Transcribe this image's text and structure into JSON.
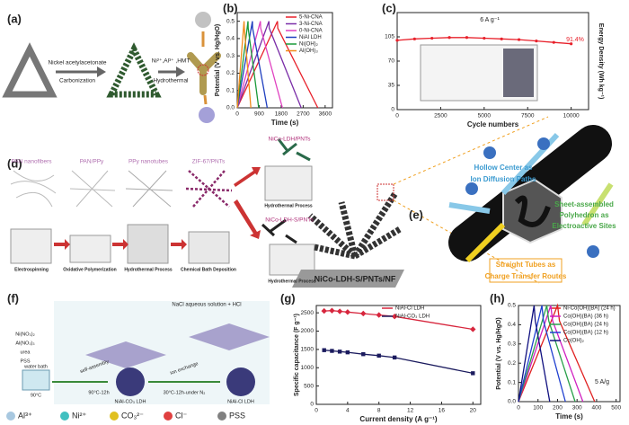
{
  "panels": {
    "a": {
      "label": "(a)",
      "steps": [
        "Nickel acetylacetonate",
        "Carbonization",
        "Ni²⁺,Al³⁺ ,HMT",
        "Hydrothermal"
      ]
    },
    "b": {
      "label": "(b)",
      "chart": {
        "type": "line",
        "xlabel": "Time (s)",
        "ylabel": "Potential (V vs. Hg/HgO)",
        "xlim": [
          0,
          3900
        ],
        "ylim": [
          0,
          0.55
        ],
        "xticks": [
          0,
          900,
          1800,
          2700,
          3600
        ],
        "yticks": [
          {
            "value": 0,
            "label": "0.0"
          },
          0.1,
          0.2,
          0.3,
          0.4,
          0.5
        ],
        "series": [
          {
            "name": "5-Ni-CNA",
            "color": "#e8202a",
            "x": [
              0,
              1650,
              1660,
              3300
            ],
            "values": [
              0,
              0.5,
              0.46,
              0
            ]
          },
          {
            "name": "3-Ni-CNA",
            "color": "#7b2ea8",
            "x": [
              0,
              1300,
              1310,
              2620
            ],
            "values": [
              0,
              0.5,
              0.46,
              0
            ]
          },
          {
            "name": "0-Ni-CNA",
            "color": "#e040c0",
            "x": [
              0,
              950,
              960,
              1850
            ],
            "values": [
              0,
              0.5,
              0.46,
              0
            ]
          },
          {
            "name": "NiAl LDH",
            "color": "#1f3fbf",
            "x": [
              0,
              620,
              630,
              1230
            ],
            "values": [
              0,
              0.5,
              0.46,
              0
            ]
          },
          {
            "name": "Ni(OH)₂",
            "color": "#1a9a3a",
            "x": [
              0,
              440,
              450,
              880
            ],
            "values": [
              0,
              0.5,
              0.46,
              0
            ]
          },
          {
            "name": "Al(OH)₃",
            "color": "#f08a1a",
            "x": [
              0,
              280,
              290,
              560
            ],
            "values": [
              0,
              0.5,
              0.46,
              0
            ]
          }
        ]
      }
    },
    "c": {
      "label": "(c)",
      "annotations": [
        "6 A g⁻¹",
        "91.4%"
      ],
      "chart": {
        "type": "line",
        "xlabel": "Cycle numbers",
        "ylabel": "Energy Density (Wh kg⁻¹)",
        "xlim": [
          0,
          11000
        ],
        "ylim": [
          0,
          140
        ],
        "xticks": [
          0,
          2500,
          5000,
          7500,
          10000
        ],
        "yticks": [
          0,
          35,
          70,
          105
        ],
        "marker": "circle",
        "series": [
          {
            "color": "#e8202a",
            "x": [
              0,
              1000,
              2000,
              3000,
              4000,
              5000,
              6000,
              7000,
              8000,
              9000,
              10000
            ],
            "values": [
              100,
              102,
              103,
              104,
              104,
              103,
              102,
              101,
              99,
              97,
              95
            ]
          }
        ]
      }
    },
    "d": {
      "label": "(d)",
      "materials": [
        "PAN nanofibers",
        "PAN/PPy",
        "PPy nanotubes",
        "ZIF-67/PNTs",
        "NiCo-LDH/PNTs",
        "NiCo-LDH-S/PNTs"
      ],
      "processes": [
        "Electrospinning",
        "Oxidative Polymerization",
        "Hydrothermal Process",
        "Chemical Bath Deposition",
        "Hydrothermal Process",
        "Hydrothermal Process"
      ]
    },
    "e": {
      "label": "(e)",
      "substrate": "NiCo-LDH-S/PNTs/NF",
      "features": [
        [
          "Hollow Center as",
          "Ion Diffusion Paths"
        ],
        [
          "Sheet-assembled",
          "Polyhedron as",
          "Electroactive Sites"
        ],
        [
          "Straight Tubes as",
          "Charge Transfer Routes"
        ]
      ]
    },
    "f": {
      "label": "(f)",
      "reagent_step": "NaCl aqueous solution + HCl",
      "reagents": [
        "Ni(NO₃)₂",
        "Al(NO₃)₃",
        "urea",
        "PSS"
      ],
      "conditions": [
        "water bath",
        "90°C",
        "self-assembly",
        "90°C-12h",
        "ion exchange",
        "30°C-12h-under N₂"
      ],
      "products": [
        "NiAl-CO₃ LDH",
        "NiAl-Cl LDH"
      ],
      "legend": [
        "Al³⁺",
        "Ni²⁺",
        "CO₃²⁻",
        "Cl⁻",
        "PSS"
      ]
    },
    "g": {
      "label": "(g)",
      "chart": {
        "type": "line",
        "xlabel": "Current density (A g⁻¹)",
        "ylabel": "Specific capacitance (F g⁻¹)",
        "xlim": [
          0,
          21
        ],
        "ylim": [
          0,
          2700
        ],
        "xticks": [
          0,
          4,
          8,
          12,
          16,
          20
        ],
        "yticks": [
          0,
          500,
          1000,
          1500,
          2000,
          2500
        ],
        "series": [
          {
            "name": "NiAl-Cl LDH",
            "color": "#d7263d",
            "marker": "diamond",
            "x": [
              1,
              2,
              3,
              4,
              6,
              8,
              10,
              20
            ],
            "values": [
              2550,
              2560,
              2540,
              2520,
              2480,
              2440,
              2400,
              2050
            ]
          },
          {
            "name": "NiAl-CO₃ LDH",
            "color": "#1b1b5e",
            "marker": "square",
            "x": [
              1,
              2,
              3,
              4,
              6,
              8,
              10,
              20
            ],
            "values": [
              1480,
              1460,
              1440,
              1420,
              1370,
              1330,
              1280,
              850
            ]
          }
        ]
      }
    },
    "h": {
      "label": "(h)",
      "annotations": [
        "5 A/g"
      ],
      "chart": {
        "type": "line",
        "xlabel": "Time (s)",
        "ylabel": "Potential (V vs. Hg/HgO)",
        "xlim": [
          0,
          520
        ],
        "ylim": [
          0,
          0.5
        ],
        "xticks": [
          0,
          100,
          200,
          300,
          400,
          500
        ],
        "yticks": [
          {
            "value": 0,
            "label": "0.0"
          },
          0.1,
          0.2,
          0.3,
          0.4,
          0.5
        ],
        "series": [
          {
            "name": "Ni-Co(OH)(BA) (24 h)",
            "color": "#e02020",
            "x": [
              0,
              200,
              210,
              390
            ],
            "values": [
              0,
              0.5,
              0.42,
              0
            ]
          },
          {
            "name": "Co(OH)(BA) (36 h)",
            "color": "#d020c0",
            "x": [
              0,
              165,
              175,
              330
            ],
            "values": [
              0,
              0.5,
              0.42,
              0
            ]
          },
          {
            "name": "Co(OH)(BA) (24 h)",
            "color": "#2aa04a",
            "x": [
              0,
              145,
              155,
              290
            ],
            "values": [
              0,
              0.5,
              0.42,
              0
            ]
          },
          {
            "name": "Co(OH)(BA) (12 h)",
            "color": "#2040d0",
            "x": [
              0,
              120,
              128,
              240
            ],
            "values": [
              0,
              0.5,
              0.42,
              0
            ]
          },
          {
            "name": "Co(OH)₂",
            "color": "#101080",
            "x": [
              0,
              80,
              86,
              160
            ],
            "values": [
              0,
              0.5,
              0.42,
              0
            ]
          }
        ]
      }
    }
  }
}
